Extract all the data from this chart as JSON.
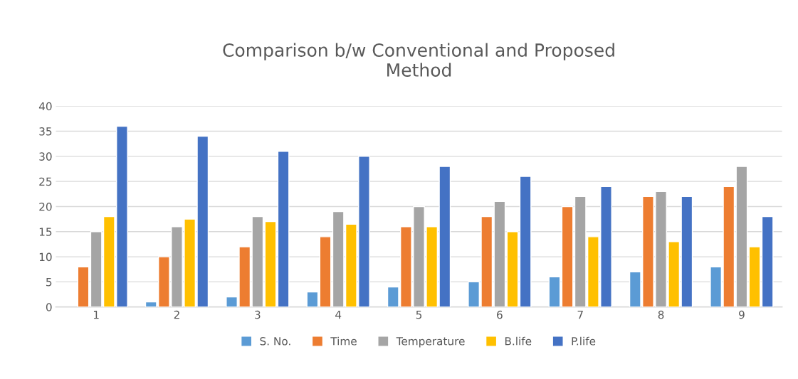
{
  "chart_data": {
    "type": "bar",
    "title": "Comparison b/w Conventional and Proposed\nMethod",
    "categories": [
      "1",
      "2",
      "3",
      "4",
      "5",
      "6",
      "7",
      "8",
      "9"
    ],
    "series": [
      {
        "name": "S. No.",
        "color": "#5b9bd5",
        "values": [
          null,
          1,
          2,
          3,
          4,
          5,
          6,
          7,
          8
        ]
      },
      {
        "name": "Time",
        "color": "#ed7d31",
        "values": [
          8,
          10,
          12,
          14,
          16,
          18,
          20,
          22,
          24
        ]
      },
      {
        "name": "Temperature",
        "color": "#a5a5a5",
        "values": [
          15,
          16,
          18,
          19,
          20,
          21,
          22,
          23,
          28
        ]
      },
      {
        "name": "B.life",
        "color": "#ffc000",
        "values": [
          18,
          17.5,
          17,
          16.5,
          16,
          15,
          14,
          13,
          12
        ]
      },
      {
        "name": "P.life",
        "color": "#4472c4",
        "values": [
          36,
          34,
          31,
          30,
          28,
          26,
          24,
          22,
          18
        ]
      }
    ],
    "ylim": [
      0,
      40
    ],
    "yticks": [
      0,
      5,
      10,
      15,
      20,
      25,
      30,
      35,
      40
    ],
    "grid": "y",
    "legend": "bottom"
  }
}
